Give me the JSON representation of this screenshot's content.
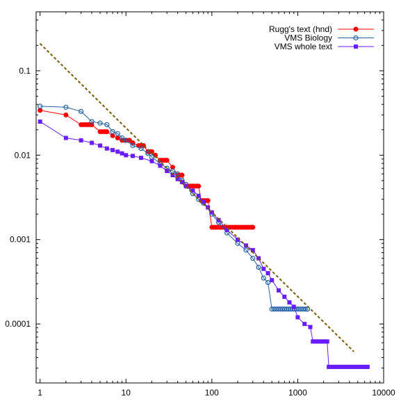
{
  "chart_data": {
    "type": "line",
    "title": "",
    "xlabel": "",
    "ylabel": "",
    "x_scale": "log",
    "y_scale": "log",
    "xlim": [
      0.9,
      10000
    ],
    "ylim": [
      2e-05,
      0.5
    ],
    "x_ticks": [
      {
        "value": 1,
        "label": "1"
      },
      {
        "value": 10,
        "label": "10"
      },
      {
        "value": 100,
        "label": "100"
      },
      {
        "value": 1000,
        "label": "1000"
      },
      {
        "value": 10000,
        "label": "10000"
      }
    ],
    "y_ticks": [
      {
        "value": 0.1,
        "label": "0.1"
      },
      {
        "value": 0.01,
        "label": "0.01"
      },
      {
        "value": 0.001,
        "label": "0.001"
      },
      {
        "value": 0.0001,
        "label": "0.0001"
      }
    ],
    "grid": false,
    "legend_position": "top-right",
    "series": [
      {
        "name": "Rugg's text (hnd)",
        "color": "#ff0000",
        "marker": "filled-circle",
        "points": [
          [
            1,
            0.034
          ],
          [
            2,
            0.03
          ],
          [
            3,
            0.023
          ],
          [
            4,
            0.023
          ],
          [
            5,
            0.019
          ],
          [
            6,
            0.019
          ],
          [
            7,
            0.017
          ],
          [
            8,
            0.016
          ],
          [
            9,
            0.015
          ],
          [
            10,
            0.015
          ],
          [
            11,
            0.015
          ],
          [
            12,
            0.014
          ],
          [
            14,
            0.013
          ],
          [
            16,
            0.013
          ],
          [
            18,
            0.011
          ],
          [
            20,
            0.011
          ],
          [
            22,
            0.01
          ],
          [
            25,
            0.0087
          ],
          [
            30,
            0.0087
          ],
          [
            35,
            0.0072
          ],
          [
            40,
            0.0058
          ],
          [
            45,
            0.0058
          ],
          [
            50,
            0.0043
          ],
          [
            60,
            0.0043
          ],
          [
            70,
            0.0043
          ],
          [
            75,
            0.0029
          ],
          [
            90,
            0.0029
          ],
          [
            100,
            0.0014
          ],
          [
            300,
            0.0014
          ]
        ]
      },
      {
        "name": "VMS Biology",
        "color": "#1f5fa8",
        "marker": "open-circle",
        "points": [
          [
            1,
            0.038
          ],
          [
            2,
            0.037
          ],
          [
            3,
            0.033
          ],
          [
            4,
            0.025
          ],
          [
            5,
            0.024
          ],
          [
            6,
            0.023
          ],
          [
            7,
            0.019
          ],
          [
            8,
            0.018
          ],
          [
            9,
            0.016
          ],
          [
            10,
            0.015
          ],
          [
            12,
            0.013
          ],
          [
            15,
            0.012
          ],
          [
            18,
            0.0105
          ],
          [
            20,
            0.0095
          ],
          [
            25,
            0.008
          ],
          [
            30,
            0.007
          ],
          [
            35,
            0.0065
          ],
          [
            40,
            0.006
          ],
          [
            45,
            0.005
          ],
          [
            50,
            0.0045
          ],
          [
            60,
            0.0035
          ],
          [
            70,
            0.003
          ],
          [
            80,
            0.0027
          ],
          [
            100,
            0.002
          ],
          [
            120,
            0.0016
          ],
          [
            150,
            0.0012
          ],
          [
            200,
            0.0009
          ],
          [
            250,
            0.00075
          ],
          [
            300,
            0.0006
          ],
          [
            350,
            0.00047
          ],
          [
            400,
            0.00035
          ],
          [
            450,
            0.00031
          ],
          [
            500,
            0.00015
          ],
          [
            1300,
            0.00015
          ]
        ]
      },
      {
        "name": "VMS whole text",
        "color": "#6a1bff",
        "marker": "filled-square",
        "points": [
          [
            1,
            0.025
          ],
          [
            2,
            0.016
          ],
          [
            3,
            0.015
          ],
          [
            4,
            0.014
          ],
          [
            5,
            0.013
          ],
          [
            6,
            0.012
          ],
          [
            7,
            0.0115
          ],
          [
            8,
            0.011
          ],
          [
            9,
            0.0105
          ],
          [
            10,
            0.01
          ],
          [
            12,
            0.0098
          ],
          [
            15,
            0.0093
          ],
          [
            20,
            0.0085
          ],
          [
            25,
            0.0075
          ],
          [
            30,
            0.0065
          ],
          [
            35,
            0.0058
          ],
          [
            40,
            0.0052
          ],
          [
            45,
            0.0048
          ],
          [
            50,
            0.0043
          ],
          [
            60,
            0.0038
          ],
          [
            70,
            0.0033
          ],
          [
            80,
            0.0028
          ],
          [
            90,
            0.0024
          ],
          [
            100,
            0.0021
          ],
          [
            120,
            0.0017
          ],
          [
            150,
            0.0013
          ],
          [
            200,
            0.001
          ],
          [
            250,
            0.00085
          ],
          [
            300,
            0.00075
          ],
          [
            350,
            0.0006
          ],
          [
            400,
            0.00045
          ],
          [
            450,
            0.0004
          ],
          [
            500,
            0.00033
          ],
          [
            600,
            0.00025
          ],
          [
            700,
            0.00021
          ],
          [
            800,
            0.00018
          ],
          [
            900,
            0.00016
          ],
          [
            1000,
            0.00012
          ],
          [
            1200,
            0.0001
          ],
          [
            1400,
            9.2e-05
          ],
          [
            1500,
            6.2e-05
          ],
          [
            2200,
            6.2e-05
          ],
          [
            2300,
            3.1e-05
          ],
          [
            6500,
            3.1e-05
          ]
        ]
      },
      {
        "name": "",
        "color": "#7a5a00",
        "style": "dashed",
        "marker": "none",
        "points": [
          [
            1,
            0.21
          ],
          [
            4500,
            4.7e-05
          ]
        ]
      }
    ]
  }
}
